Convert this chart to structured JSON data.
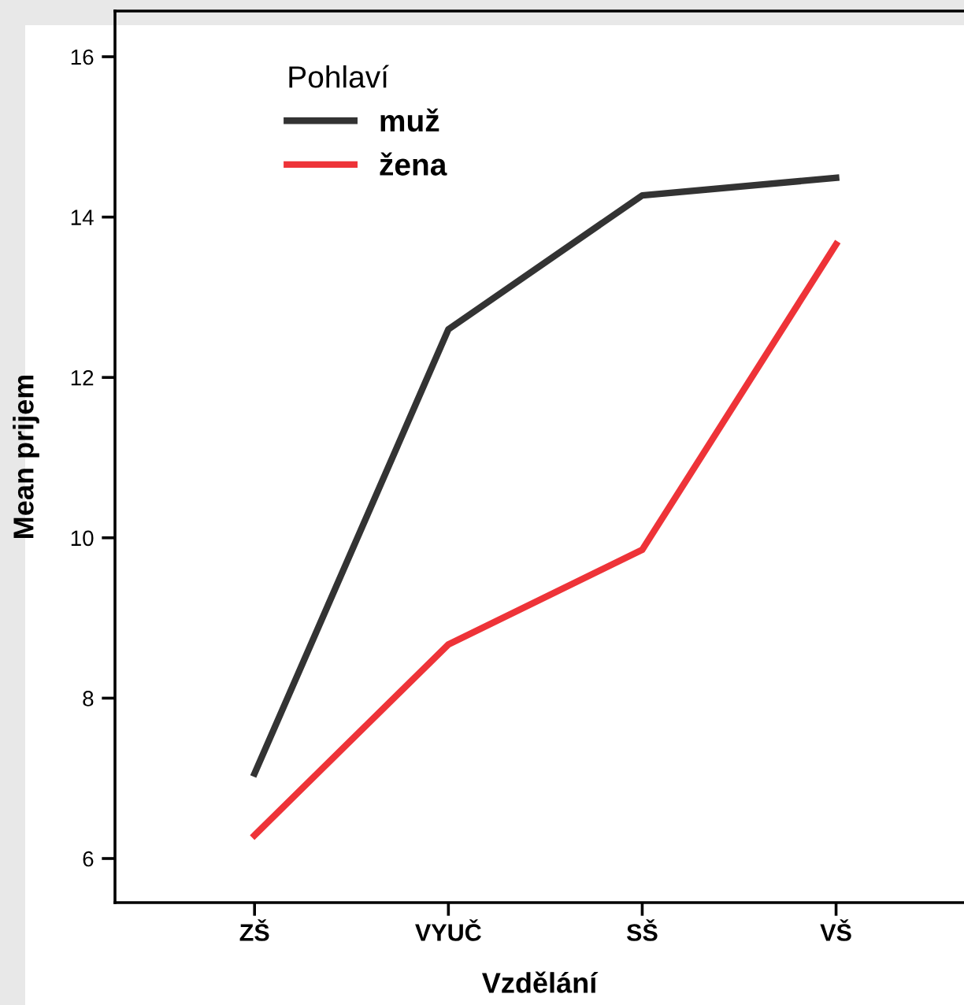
{
  "chart_data": {
    "type": "line",
    "xlabel": "Vzdělání",
    "ylabel": "Mean prijem",
    "legend_title": "Pohlaví",
    "categories": [
      "ZŠ",
      "VYUČ",
      "SŠ",
      "VŠ"
    ],
    "series": [
      {
        "name": "muž",
        "color": "#333333",
        "values": [
          7.06,
          12.6,
          14.27,
          14.49
        ]
      },
      {
        "name": "žena",
        "color": "#ee3338",
        "values": [
          6.29,
          8.67,
          9.85,
          13.66
        ]
      }
    ],
    "ylim": [
      5.45,
      16.57
    ],
    "yticks": [
      6,
      8,
      10,
      12,
      14,
      16
    ],
    "grid": false,
    "legend": "top left",
    "marker": "none",
    "line_style": "solid"
  }
}
